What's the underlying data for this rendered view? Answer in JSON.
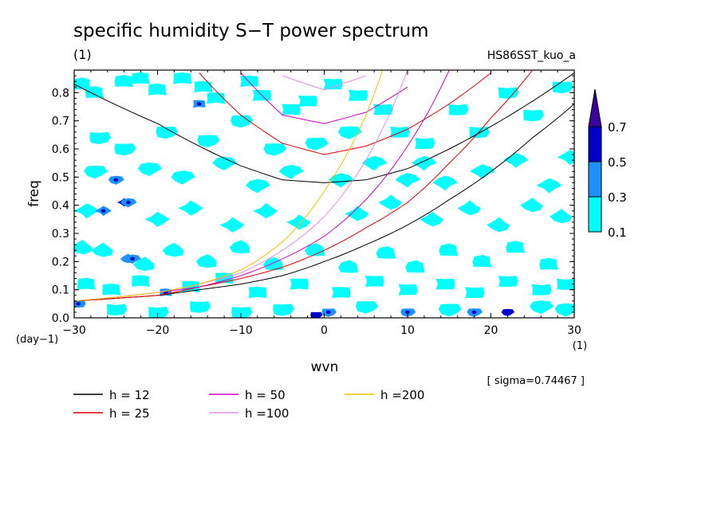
{
  "title": "specific humidity S−T power spectrum",
  "unit_top_left": "(1)",
  "run_name": "HS86SST_kuo_a",
  "sigma_note": "[ sigma=0.74467 ]",
  "colorbar": {
    "levels": [
      "0.1",
      "0.3",
      "0.5",
      "0.7"
    ],
    "colors": [
      "#00ffff",
      "#1e90ff",
      "#0000c8",
      "#3c00a0"
    ]
  },
  "legend": [
    {
      "label": "h = 12",
      "color": "#000000"
    },
    {
      "label": "h = 25",
      "color": "#e00000"
    },
    {
      "label": "h = 50",
      "color": "#d000c8"
    },
    {
      "label": "h =100",
      "color": "#e090e0"
    },
    {
      "label": "h =200",
      "color": "#f0c000"
    }
  ],
  "chart_data": {
    "type": "heatmap",
    "title": "specific humidity S−T power spectrum",
    "xlabel": "wvn",
    "ylabel": "freq",
    "x_unit": "(1)",
    "y_unit": "(day−1)",
    "xlim": [
      -30,
      30
    ],
    "ylim": [
      0,
      0.88
    ],
    "x_ticks": [
      "−30",
      "−20",
      "−10",
      "0",
      "10",
      "20",
      "30"
    ],
    "y_ticks": [
      "0.0",
      "0.1",
      "0.2",
      "0.3",
      "0.4",
      "0.5",
      "0.6",
      "0.7",
      "0.8"
    ],
    "contour_levels": [
      0.1,
      0.3,
      0.5,
      0.7
    ],
    "series": [
      {
        "name": "h = 12",
        "x": [
          -30,
          -20,
          -15,
          -10,
          -5,
          0,
          5,
          10,
          15,
          20,
          25,
          30
        ],
        "low_branch": [
          0.06,
          0.08,
          0.1,
          0.12,
          0.15,
          0.2,
          0.26,
          0.33,
          0.42,
          0.52,
          0.64,
          0.76
        ],
        "ig_branch": [
          0.83,
          0.69,
          0.61,
          0.54,
          0.49,
          0.48,
          0.49,
          0.53,
          0.6,
          0.68,
          0.77,
          0.87
        ]
      },
      {
        "name": "h = 25",
        "x": [
          -30,
          -20,
          -15,
          -10,
          -5,
          0,
          5,
          10,
          15,
          20,
          25
        ],
        "low_branch": [
          0.06,
          0.08,
          0.11,
          0.14,
          0.18,
          0.24,
          0.32,
          0.41,
          0.55,
          0.71,
          0.88
        ],
        "ig_branch": [
          null,
          null,
          0.87,
          0.72,
          0.62,
          0.58,
          0.61,
          0.67,
          0.76,
          0.87,
          null
        ]
      },
      {
        "name": "h = 50",
        "x": [
          -30,
          -20,
          -15,
          -10,
          -5,
          0,
          5,
          10,
          15
        ],
        "low_branch": [
          0.06,
          0.09,
          0.11,
          0.15,
          0.21,
          0.29,
          0.42,
          0.61,
          0.88
        ],
        "ig_branch": [
          null,
          null,
          null,
          0.87,
          0.72,
          0.69,
          0.73,
          0.82,
          null
        ]
      },
      {
        "name": "h =100",
        "x": [
          -30,
          -20,
          -15,
          -10,
          -5,
          0,
          5,
          10
        ],
        "low_branch": [
          0.06,
          0.09,
          0.12,
          0.16,
          0.24,
          0.36,
          0.56,
          0.88
        ],
        "ig_branch": [
          null,
          null,
          null,
          null,
          0.86,
          0.81,
          0.86,
          null
        ]
      },
      {
        "name": "h =200",
        "x": [
          -30,
          -20,
          -15,
          -10,
          -5,
          0,
          5,
          7
        ],
        "low_branch": [
          0.06,
          0.09,
          0.12,
          0.17,
          0.27,
          0.45,
          0.72,
          0.88
        ],
        "ig_branch": [
          null,
          null,
          null,
          null,
          null,
          null,
          null,
          null
        ]
      }
    ],
    "contour_patches": [
      [
        -29.0,
        0.83,
        0.1
      ],
      [
        -27.5,
        0.8,
        0.1
      ],
      [
        -24.0,
        0.84,
        0.1
      ],
      [
        -22.0,
        0.85,
        0.1
      ],
      [
        -20.0,
        0.81,
        0.1
      ],
      [
        -17.0,
        0.85,
        0.1
      ],
      [
        -14.5,
        0.82,
        0.1
      ],
      [
        -13.0,
        0.78,
        0.1
      ],
      [
        -15.0,
        0.76,
        0.3
      ],
      [
        -9.0,
        0.84,
        0.1
      ],
      [
        -7.5,
        0.79,
        0.1
      ],
      [
        -4.0,
        0.74,
        0.1
      ],
      [
        -2.0,
        0.77,
        0.1
      ],
      [
        1.0,
        0.83,
        0.1
      ],
      [
        4.0,
        0.79,
        0.1
      ],
      [
        7.0,
        0.74,
        0.1
      ],
      [
        9.0,
        0.66,
        0.1
      ],
      [
        12.0,
        0.62,
        0.1
      ],
      [
        16.0,
        0.74,
        0.1
      ],
      [
        18.5,
        0.66,
        0.1
      ],
      [
        22.0,
        0.8,
        0.1
      ],
      [
        25.0,
        0.72,
        0.1
      ],
      [
        28.5,
        0.82,
        0.1
      ],
      [
        -27.0,
        0.64,
        0.1
      ],
      [
        -24.0,
        0.6,
        0.1
      ],
      [
        -19.0,
        0.66,
        0.1
      ],
      [
        -14.0,
        0.63,
        0.1
      ],
      [
        -10.0,
        0.7,
        0.1
      ],
      [
        -6.0,
        0.6,
        0.1
      ],
      [
        -1.0,
        0.62,
        0.1
      ],
      [
        3.0,
        0.66,
        0.1
      ],
      [
        -27.5,
        0.52,
        0.1
      ],
      [
        -25.0,
        0.49,
        0.3
      ],
      [
        -21.0,
        0.53,
        0.1
      ],
      [
        -17.0,
        0.5,
        0.1
      ],
      [
        -12.0,
        0.55,
        0.1
      ],
      [
        -8.0,
        0.47,
        0.1
      ],
      [
        -4.0,
        0.52,
        0.1
      ],
      [
        2.0,
        0.49,
        0.1
      ],
      [
        6.0,
        0.55,
        0.1
      ],
      [
        10.0,
        0.49,
        0.1
      ],
      [
        12.0,
        0.55,
        0.1
      ],
      [
        14.5,
        0.48,
        0.1
      ],
      [
        19.0,
        0.52,
        0.1
      ],
      [
        23.0,
        0.56,
        0.1
      ],
      [
        27.0,
        0.47,
        0.1
      ],
      [
        29.5,
        0.57,
        0.1
      ],
      [
        -28.5,
        0.38,
        0.1
      ],
      [
        -26.5,
        0.38,
        0.3
      ],
      [
        -24.0,
        0.41,
        0.5
      ],
      [
        -20.0,
        0.35,
        0.1
      ],
      [
        -16.0,
        0.39,
        0.1
      ],
      [
        -11.0,
        0.33,
        0.1
      ],
      [
        -7.0,
        0.38,
        0.1
      ],
      [
        -3.0,
        0.34,
        0.1
      ],
      [
        4.0,
        0.37,
        0.1
      ],
      [
        8.0,
        0.41,
        0.1
      ],
      [
        13.0,
        0.35,
        0.1
      ],
      [
        17.5,
        0.39,
        0.1
      ],
      [
        21.0,
        0.33,
        0.1
      ],
      [
        25.0,
        0.4,
        0.1
      ],
      [
        28.5,
        0.36,
        0.1
      ],
      [
        -29.0,
        0.25,
        0.1
      ],
      [
        -26.5,
        0.24,
        0.1
      ],
      [
        -23.5,
        0.21,
        0.3
      ],
      [
        -21.5,
        0.19,
        0.1
      ],
      [
        -18.0,
        0.24,
        0.1
      ],
      [
        -14.0,
        0.2,
        0.1
      ],
      [
        -10.0,
        0.25,
        0.1
      ],
      [
        -6.0,
        0.19,
        0.1
      ],
      [
        -1.0,
        0.24,
        0.1
      ],
      [
        3.0,
        0.18,
        0.1
      ],
      [
        7.5,
        0.23,
        0.1
      ],
      [
        11.0,
        0.18,
        0.1
      ],
      [
        15.0,
        0.24,
        0.1
      ],
      [
        19.0,
        0.2,
        0.1
      ],
      [
        23.0,
        0.25,
        0.1
      ],
      [
        27.0,
        0.19,
        0.1
      ],
      [
        -28.5,
        0.12,
        0.1
      ],
      [
        -25.5,
        0.1,
        0.1
      ],
      [
        -22.0,
        0.13,
        0.1
      ],
      [
        -19.0,
        0.09,
        0.3
      ],
      [
        -16.0,
        0.11,
        0.1
      ],
      [
        -12.0,
        0.14,
        0.1
      ],
      [
        -8.0,
        0.09,
        0.1
      ],
      [
        -3.0,
        0.12,
        0.1
      ],
      [
        2.0,
        0.09,
        0.1
      ],
      [
        6.0,
        0.13,
        0.1
      ],
      [
        10.0,
        0.1,
        0.1
      ],
      [
        14.5,
        0.12,
        0.1
      ],
      [
        18.0,
        0.09,
        0.1
      ],
      [
        22.0,
        0.13,
        0.1
      ],
      [
        26.0,
        0.1,
        0.1
      ],
      [
        29.0,
        0.12,
        0.1
      ],
      [
        -29.5,
        0.05,
        0.3
      ],
      [
        -25.0,
        0.03,
        0.1
      ],
      [
        -20.0,
        0.02,
        0.1
      ],
      [
        -15.0,
        0.04,
        0.1
      ],
      [
        -10.0,
        0.02,
        0.1
      ],
      [
        -5.0,
        0.03,
        0.1
      ],
      [
        -1.0,
        0.01,
        0.5
      ],
      [
        0.5,
        0.02,
        0.3
      ],
      [
        5.0,
        0.04,
        0.1
      ],
      [
        10.0,
        0.02,
        0.3
      ],
      [
        15.0,
        0.03,
        0.1
      ],
      [
        18.0,
        0.02,
        0.3
      ],
      [
        22.0,
        0.02,
        0.5
      ],
      [
        26.0,
        0.04,
        0.1
      ],
      [
        29.0,
        0.03,
        0.1
      ],
      [
        -23.5,
        0.41,
        0.3
      ],
      [
        -23.0,
        0.21,
        0.3
      ]
    ]
  }
}
